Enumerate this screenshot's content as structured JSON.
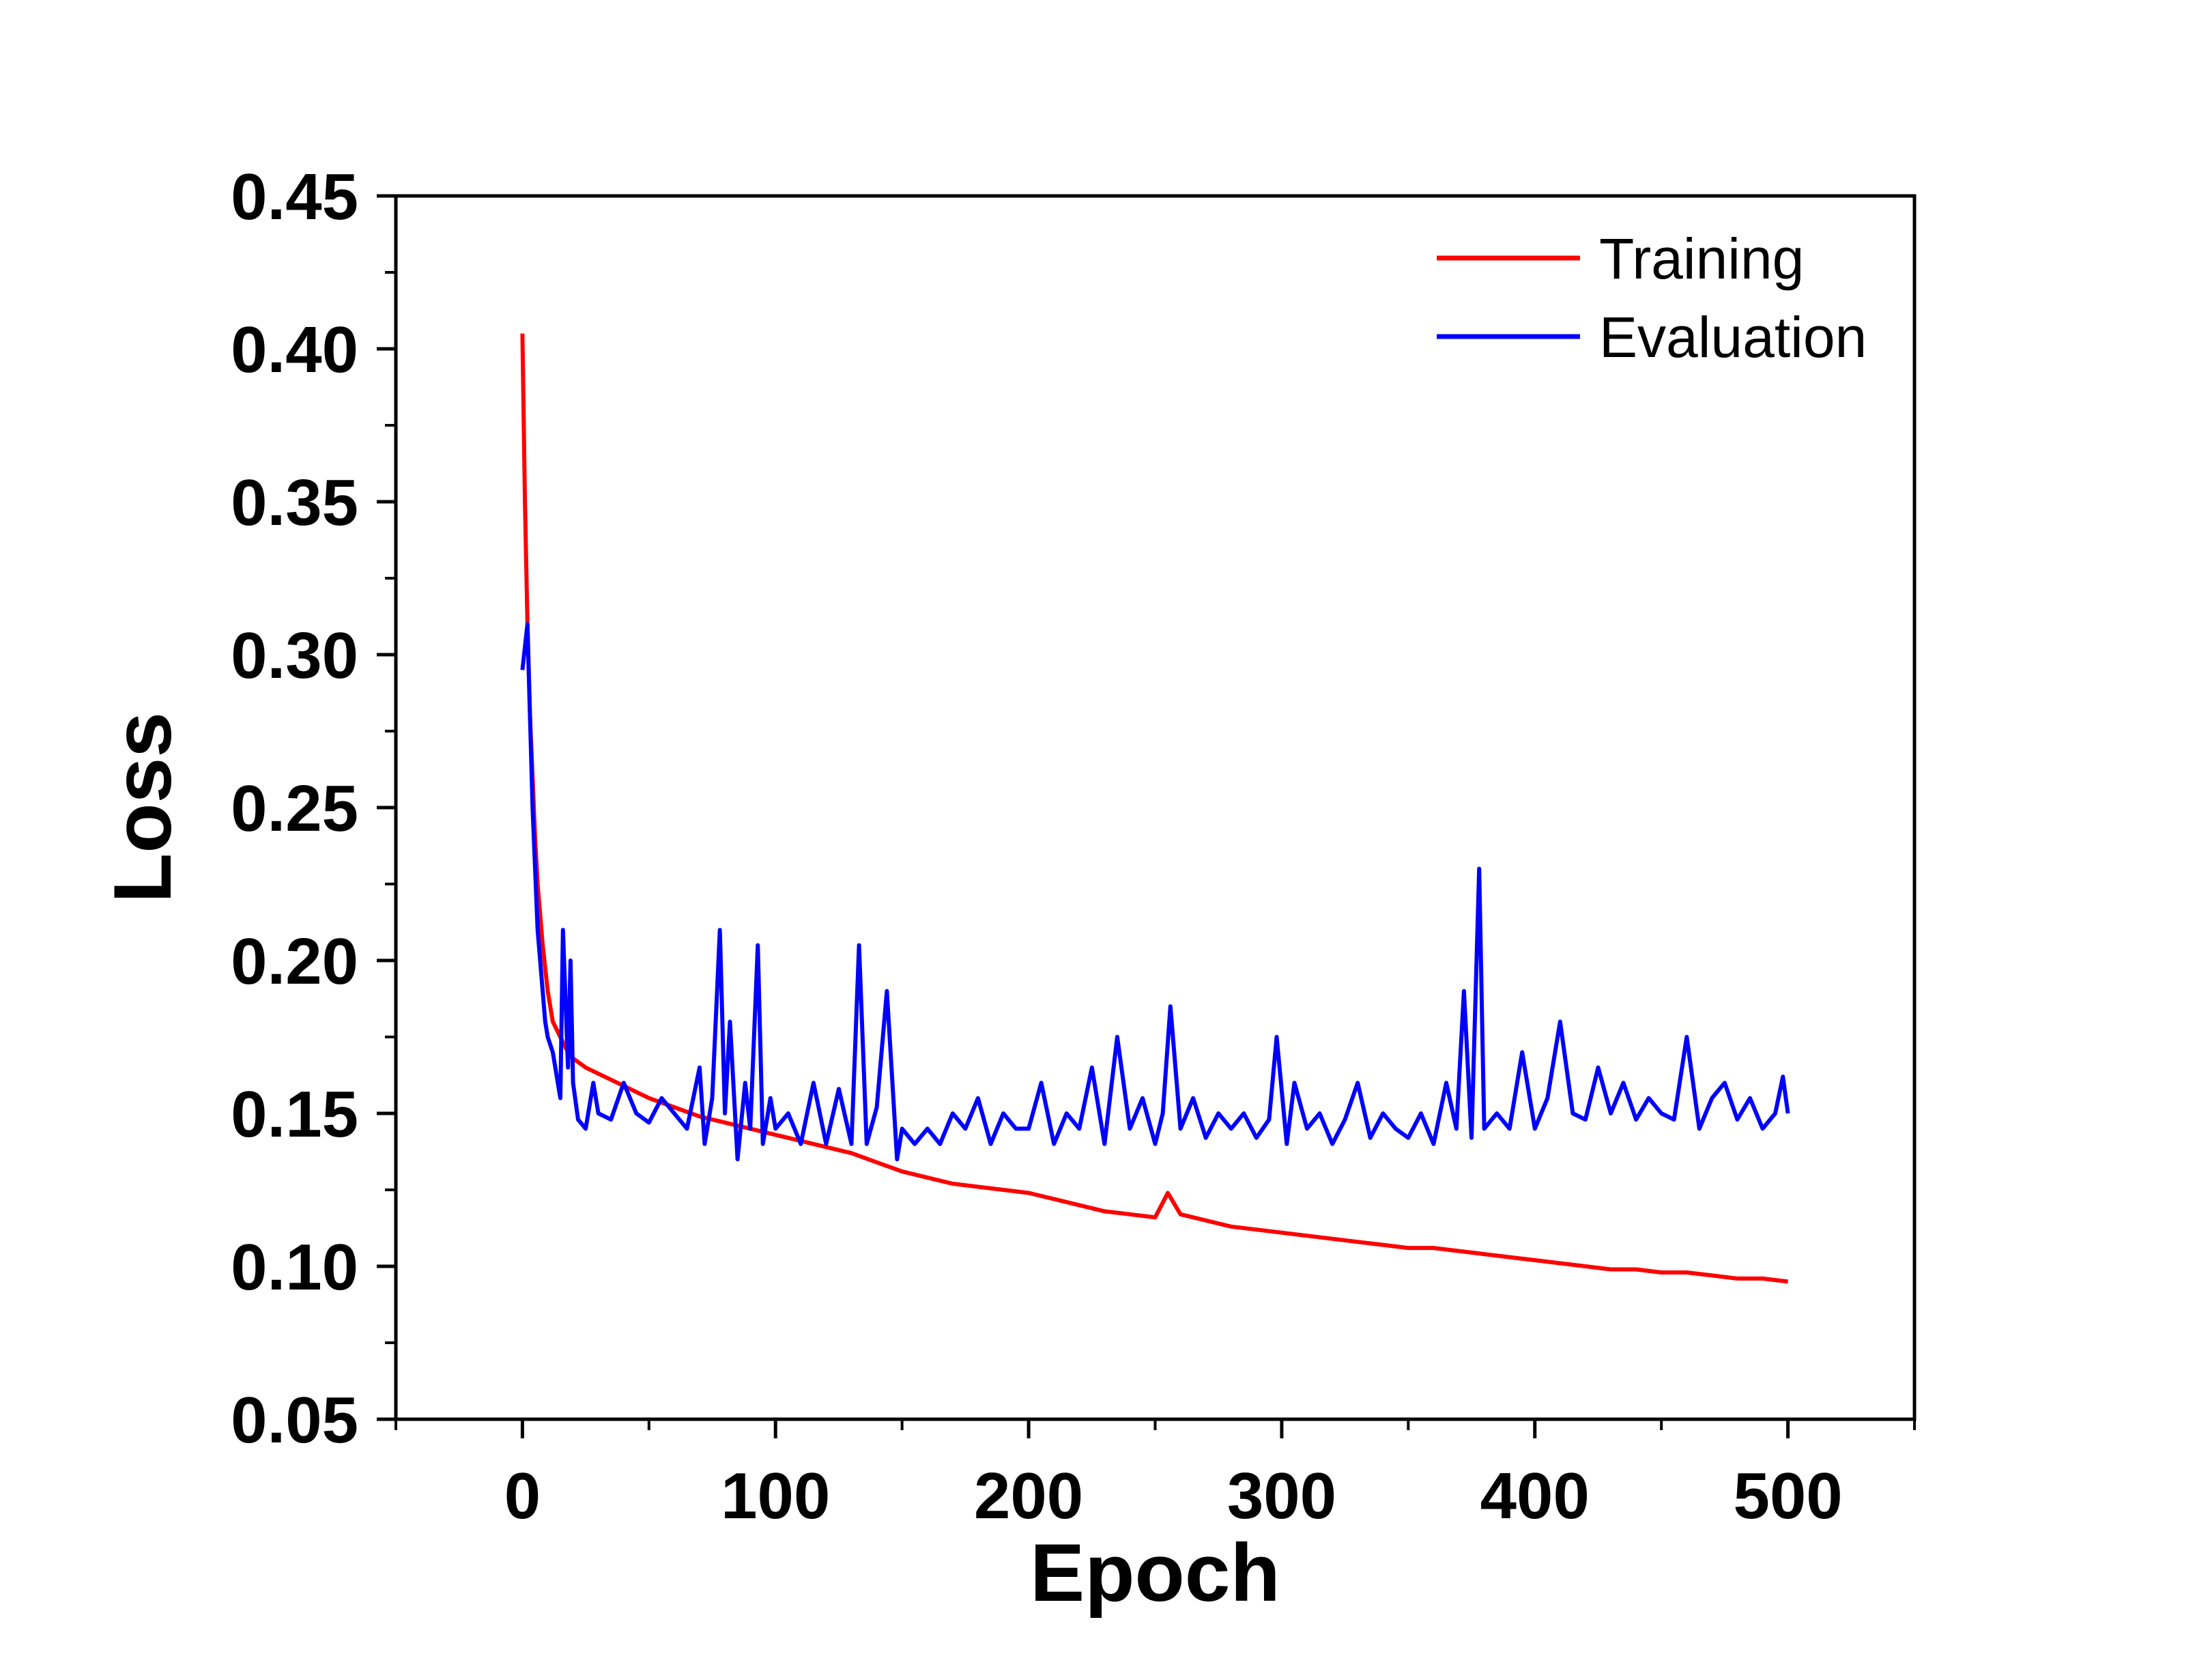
{
  "chart_data": {
    "type": "line",
    "title": "",
    "xlabel": "Epoch",
    "ylabel": "Loss",
    "xlim": [
      -50,
      550
    ],
    "ylim": [
      0.05,
      0.45
    ],
    "xticks": [
      "0",
      "100",
      "200",
      "300",
      "400",
      "500"
    ],
    "xtick_values": [
      0,
      100,
      200,
      300,
      400,
      500
    ],
    "yticks": [
      "0.05",
      "0.10",
      "0.15",
      "0.20",
      "0.25",
      "0.30",
      "0.35",
      "0.40",
      "0.45"
    ],
    "ytick_values": [
      0.05,
      0.1,
      0.15,
      0.2,
      0.25,
      0.3,
      0.35,
      0.4,
      0.45
    ],
    "grid": false,
    "legend_position": "top-right",
    "series": [
      {
        "name": "Training",
        "color": "#ff0000",
        "x": [
          0,
          1,
          2,
          3,
          4,
          5,
          6,
          8,
          10,
          12,
          15,
          18,
          20,
          25,
          30,
          35,
          40,
          50,
          60,
          70,
          80,
          90,
          100,
          110,
          120,
          130,
          140,
          150,
          160,
          170,
          180,
          190,
          200,
          210,
          220,
          230,
          240,
          250,
          255,
          260,
          270,
          280,
          290,
          300,
          310,
          320,
          330,
          340,
          350,
          360,
          370,
          380,
          390,
          400,
          410,
          420,
          430,
          440,
          450,
          460,
          470,
          480,
          490,
          500
        ],
        "y": [
          0.405,
          0.35,
          0.31,
          0.28,
          0.26,
          0.24,
          0.225,
          0.205,
          0.19,
          0.18,
          0.175,
          0.17,
          0.168,
          0.165,
          0.163,
          0.161,
          0.159,
          0.155,
          0.152,
          0.149,
          0.147,
          0.145,
          0.143,
          0.141,
          0.139,
          0.137,
          0.134,
          0.131,
          0.129,
          0.127,
          0.126,
          0.125,
          0.124,
          0.122,
          0.12,
          0.118,
          0.117,
          0.116,
          0.124,
          0.117,
          0.115,
          0.113,
          0.112,
          0.111,
          0.11,
          0.109,
          0.108,
          0.107,
          0.106,
          0.106,
          0.105,
          0.104,
          0.103,
          0.102,
          0.101,
          0.1,
          0.099,
          0.099,
          0.098,
          0.098,
          0.097,
          0.096,
          0.096,
          0.095
        ]
      },
      {
        "name": "Evaluation",
        "color": "#0000ff",
        "x": [
          0,
          2,
          3,
          4,
          5,
          6,
          7,
          8,
          9,
          10,
          12,
          14,
          15,
          16,
          18,
          19,
          20,
          22,
          25,
          28,
          30,
          35,
          40,
          45,
          50,
          55,
          60,
          65,
          70,
          72,
          75,
          78,
          80,
          82,
          85,
          88,
          90,
          93,
          95,
          98,
          100,
          105,
          110,
          115,
          120,
          125,
          130,
          133,
          136,
          140,
          144,
          148,
          150,
          155,
          160,
          165,
          170,
          175,
          180,
          185,
          190,
          195,
          200,
          205,
          210,
          215,
          220,
          225,
          230,
          235,
          240,
          245,
          250,
          253,
          256,
          260,
          265,
          270,
          275,
          280,
          285,
          290,
          295,
          298,
          302,
          305,
          310,
          315,
          320,
          325,
          330,
          335,
          340,
          345,
          350,
          355,
          360,
          365,
          369,
          372,
          375,
          378,
          380,
          385,
          390,
          395,
          400,
          405,
          410,
          415,
          420,
          425,
          430,
          435,
          440,
          445,
          450,
          455,
          460,
          465,
          470,
          475,
          480,
          485,
          490,
          495,
          498,
          500
        ],
        "y": [
          0.295,
          0.31,
          0.28,
          0.25,
          0.23,
          0.21,
          0.2,
          0.19,
          0.18,
          0.175,
          0.17,
          0.16,
          0.155,
          0.21,
          0.165,
          0.2,
          0.16,
          0.148,
          0.145,
          0.16,
          0.15,
          0.148,
          0.16,
          0.15,
          0.147,
          0.155,
          0.15,
          0.145,
          0.165,
          0.14,
          0.155,
          0.21,
          0.15,
          0.18,
          0.135,
          0.16,
          0.145,
          0.205,
          0.14,
          0.155,
          0.145,
          0.15,
          0.14,
          0.16,
          0.14,
          0.158,
          0.14,
          0.205,
          0.14,
          0.152,
          0.19,
          0.135,
          0.145,
          0.14,
          0.145,
          0.14,
          0.15,
          0.145,
          0.155,
          0.14,
          0.15,
          0.145,
          0.145,
          0.16,
          0.14,
          0.15,
          0.145,
          0.165,
          0.14,
          0.175,
          0.145,
          0.155,
          0.14,
          0.15,
          0.185,
          0.145,
          0.155,
          0.142,
          0.15,
          0.145,
          0.15,
          0.142,
          0.148,
          0.175,
          0.14,
          0.16,
          0.145,
          0.15,
          0.14,
          0.148,
          0.16,
          0.142,
          0.15,
          0.145,
          0.142,
          0.15,
          0.14,
          0.16,
          0.145,
          0.19,
          0.142,
          0.23,
          0.145,
          0.15,
          0.145,
          0.17,
          0.145,
          0.155,
          0.18,
          0.15,
          0.148,
          0.165,
          0.15,
          0.16,
          0.148,
          0.155,
          0.15,
          0.148,
          0.175,
          0.145,
          0.155,
          0.16,
          0.148,
          0.155,
          0.145,
          0.15,
          0.162,
          0.15
        ]
      }
    ]
  }
}
